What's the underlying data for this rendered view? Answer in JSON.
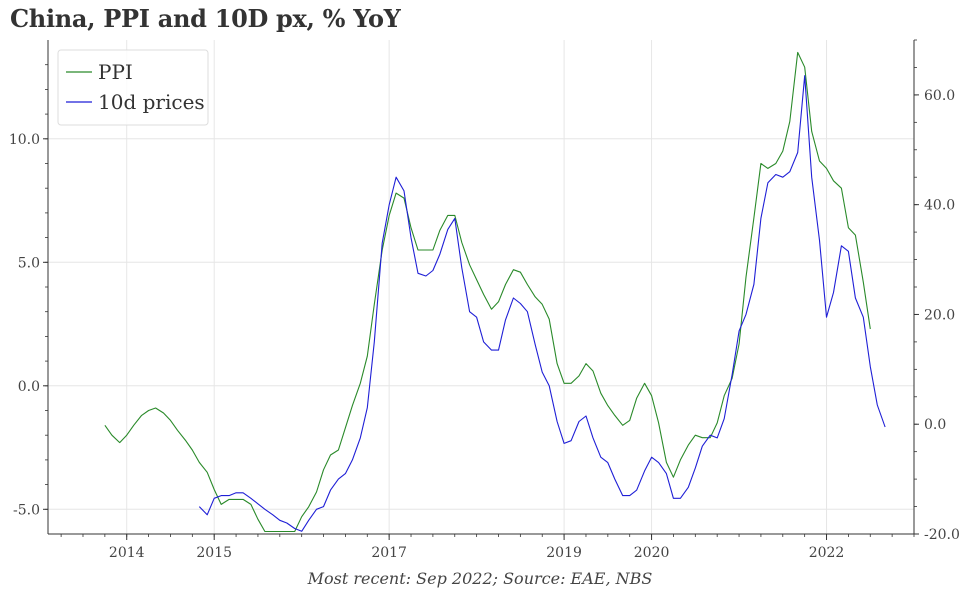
{
  "title": "China, PPI and 10D px, % YoY",
  "footnote": "Most recent: Sep 2022; Source: EAE, NBS",
  "colors": {
    "ppi": "#2a8a2a",
    "tenD": "#1f1fd6",
    "grid": "#e6e6e6",
    "axis": "#333333"
  },
  "chart_data": {
    "type": "line",
    "title": "China, PPI and 10D px, % YoY",
    "x_axis": {
      "min": 2013.1,
      "max": 2023.0,
      "ticks": [
        2014,
        2015,
        2017,
        2019,
        2020,
        2022
      ],
      "tick_labels": [
        "2014",
        "2015",
        "2017",
        "2019",
        "2020",
        "2022"
      ]
    },
    "y_left": {
      "min": -6.0,
      "max": 14.0,
      "ticks": [
        -5,
        0,
        5,
        10
      ],
      "tick_labels": [
        "-5.0",
        "0.0",
        "5.0",
        "10.0"
      ]
    },
    "y_right": {
      "min": -20.0,
      "max": 70.0,
      "ticks": [
        -20,
        0,
        20,
        40,
        60
      ],
      "tick_labels": [
        "-20.0",
        "0.0",
        "20.0",
        "40.0",
        "60.0"
      ]
    },
    "legend": {
      "placement": "top-left",
      "entries": [
        "PPI",
        "10d prices"
      ]
    },
    "grid": true,
    "series": [
      {
        "name": "PPI",
        "axis": "left",
        "color": "#2a8a2a",
        "points": [
          [
            2013.75,
            -1.6
          ],
          [
            2013.83,
            -2.0
          ],
          [
            2013.92,
            -2.3
          ],
          [
            2014.0,
            -2.0
          ],
          [
            2014.08,
            -1.6
          ],
          [
            2014.17,
            -1.2
          ],
          [
            2014.25,
            -1.0
          ],
          [
            2014.33,
            -0.9
          ],
          [
            2014.42,
            -1.1
          ],
          [
            2014.5,
            -1.4
          ],
          [
            2014.58,
            -1.8
          ],
          [
            2014.67,
            -2.2
          ],
          [
            2014.75,
            -2.6
          ],
          [
            2014.83,
            -3.1
          ],
          [
            2014.92,
            -3.5
          ],
          [
            2015.0,
            -4.2
          ],
          [
            2015.08,
            -4.8
          ],
          [
            2015.17,
            -4.6
          ],
          [
            2015.25,
            -4.6
          ],
          [
            2015.33,
            -4.6
          ],
          [
            2015.42,
            -4.8
          ],
          [
            2015.5,
            -5.4
          ],
          [
            2015.58,
            -5.9
          ],
          [
            2015.67,
            -5.9
          ],
          [
            2015.75,
            -5.9
          ],
          [
            2015.83,
            -5.9
          ],
          [
            2015.92,
            -5.9
          ],
          [
            2016.0,
            -5.3
          ],
          [
            2016.08,
            -4.9
          ],
          [
            2016.17,
            -4.3
          ],
          [
            2016.25,
            -3.4
          ],
          [
            2016.33,
            -2.8
          ],
          [
            2016.42,
            -2.6
          ],
          [
            2016.5,
            -1.7
          ],
          [
            2016.58,
            -0.8
          ],
          [
            2016.67,
            0.1
          ],
          [
            2016.75,
            1.2
          ],
          [
            2016.83,
            3.3
          ],
          [
            2016.92,
            5.5
          ],
          [
            2017.0,
            6.9
          ],
          [
            2017.08,
            7.8
          ],
          [
            2017.17,
            7.6
          ],
          [
            2017.25,
            6.4
          ],
          [
            2017.33,
            5.5
          ],
          [
            2017.42,
            5.5
          ],
          [
            2017.5,
            5.5
          ],
          [
            2017.58,
            6.3
          ],
          [
            2017.67,
            6.9
          ],
          [
            2017.75,
            6.9
          ],
          [
            2017.83,
            5.8
          ],
          [
            2017.92,
            4.9
          ],
          [
            2018.0,
            4.3
          ],
          [
            2018.08,
            3.7
          ],
          [
            2018.17,
            3.1
          ],
          [
            2018.25,
            3.4
          ],
          [
            2018.33,
            4.1
          ],
          [
            2018.42,
            4.7
          ],
          [
            2018.5,
            4.6
          ],
          [
            2018.58,
            4.1
          ],
          [
            2018.67,
            3.6
          ],
          [
            2018.75,
            3.3
          ],
          [
            2018.83,
            2.7
          ],
          [
            2018.92,
            0.9
          ],
          [
            2019.0,
            0.1
          ],
          [
            2019.08,
            0.1
          ],
          [
            2019.17,
            0.4
          ],
          [
            2019.25,
            0.9
          ],
          [
            2019.33,
            0.6
          ],
          [
            2019.42,
            -0.3
          ],
          [
            2019.5,
            -0.8
          ],
          [
            2019.58,
            -1.2
          ],
          [
            2019.67,
            -1.6
          ],
          [
            2019.75,
            -1.4
          ],
          [
            2019.83,
            -0.5
          ],
          [
            2019.92,
            0.1
          ],
          [
            2020.0,
            -0.4
          ],
          [
            2020.08,
            -1.5
          ],
          [
            2020.17,
            -3.1
          ],
          [
            2020.25,
            -3.7
          ],
          [
            2020.33,
            -3.0
          ],
          [
            2020.42,
            -2.4
          ],
          [
            2020.5,
            -2.0
          ],
          [
            2020.58,
            -2.1
          ],
          [
            2020.67,
            -2.1
          ],
          [
            2020.75,
            -1.5
          ],
          [
            2020.83,
            -0.4
          ],
          [
            2020.92,
            0.3
          ],
          [
            2021.0,
            1.7
          ],
          [
            2021.08,
            4.4
          ],
          [
            2021.17,
            6.8
          ],
          [
            2021.25,
            9.0
          ],
          [
            2021.33,
            8.8
          ],
          [
            2021.42,
            9.0
          ],
          [
            2021.5,
            9.5
          ],
          [
            2021.58,
            10.7
          ],
          [
            2021.67,
            13.5
          ],
          [
            2021.75,
            12.9
          ],
          [
            2021.83,
            10.3
          ],
          [
            2021.92,
            9.1
          ],
          [
            2022.0,
            8.8
          ],
          [
            2022.08,
            8.3
          ],
          [
            2022.17,
            8.0
          ],
          [
            2022.25,
            6.4
          ],
          [
            2022.33,
            6.1
          ],
          [
            2022.42,
            4.2
          ],
          [
            2022.5,
            2.3
          ]
        ]
      },
      {
        "name": "10d prices",
        "axis": "right",
        "color": "#1f1fd6",
        "points": [
          [
            2014.83,
            -15
          ],
          [
            2014.92,
            -16.5
          ],
          [
            2015.0,
            -13.5
          ],
          [
            2015.08,
            -13.0
          ],
          [
            2015.17,
            -13.0
          ],
          [
            2015.25,
            -12.5
          ],
          [
            2015.33,
            -12.5
          ],
          [
            2015.42,
            -13.5
          ],
          [
            2015.5,
            -14.5
          ],
          [
            2015.58,
            -15.5
          ],
          [
            2015.67,
            -16.5
          ],
          [
            2015.75,
            -17.5
          ],
          [
            2015.83,
            -18.0
          ],
          [
            2015.92,
            -19.0
          ],
          [
            2016.0,
            -19.5
          ],
          [
            2016.08,
            -17.5
          ],
          [
            2016.17,
            -15.5
          ],
          [
            2016.25,
            -15.0
          ],
          [
            2016.33,
            -12.0
          ],
          [
            2016.42,
            -10.0
          ],
          [
            2016.5,
            -9.0
          ],
          [
            2016.58,
            -6.5
          ],
          [
            2016.67,
            -2.5
          ],
          [
            2016.75,
            3.0
          ],
          [
            2016.83,
            15.0
          ],
          [
            2016.92,
            33.0
          ],
          [
            2017.0,
            40.0
          ],
          [
            2017.08,
            45.0
          ],
          [
            2017.17,
            42.5
          ],
          [
            2017.25,
            34.0
          ],
          [
            2017.33,
            27.5
          ],
          [
            2017.42,
            27.0
          ],
          [
            2017.5,
            28.0
          ],
          [
            2017.58,
            31.0
          ],
          [
            2017.67,
            35.5
          ],
          [
            2017.75,
            37.5
          ],
          [
            2017.83,
            28.5
          ],
          [
            2017.92,
            20.5
          ],
          [
            2018.0,
            19.5
          ],
          [
            2018.08,
            15.0
          ],
          [
            2018.17,
            13.5
          ],
          [
            2018.25,
            13.5
          ],
          [
            2018.33,
            19.0
          ],
          [
            2018.42,
            23.0
          ],
          [
            2018.5,
            22.0
          ],
          [
            2018.58,
            20.5
          ],
          [
            2018.67,
            14.5
          ],
          [
            2018.75,
            9.5
          ],
          [
            2018.83,
            7.0
          ],
          [
            2018.92,
            0.5
          ],
          [
            2019.0,
            -3.5
          ],
          [
            2019.08,
            -3.0
          ],
          [
            2019.17,
            0.5
          ],
          [
            2019.25,
            1.5
          ],
          [
            2019.33,
            -2.5
          ],
          [
            2019.42,
            -6.0
          ],
          [
            2019.5,
            -7.0
          ],
          [
            2019.58,
            -10.0
          ],
          [
            2019.67,
            -13.0
          ],
          [
            2019.75,
            -13.0
          ],
          [
            2019.83,
            -12.0
          ],
          [
            2019.92,
            -8.5
          ],
          [
            2020.0,
            -6.0
          ],
          [
            2020.08,
            -7.0
          ],
          [
            2020.17,
            -9.0
          ],
          [
            2020.25,
            -13.5
          ],
          [
            2020.33,
            -13.5
          ],
          [
            2020.42,
            -11.5
          ],
          [
            2020.5,
            -8.0
          ],
          [
            2020.58,
            -4.0
          ],
          [
            2020.67,
            -2.0
          ],
          [
            2020.75,
            -2.5
          ],
          [
            2020.83,
            1.0
          ],
          [
            2020.92,
            9.0
          ],
          [
            2021.0,
            17.0
          ],
          [
            2021.08,
            20.0
          ],
          [
            2021.17,
            25.5
          ],
          [
            2021.25,
            37.5
          ],
          [
            2021.33,
            44.0
          ],
          [
            2021.42,
            45.5
          ],
          [
            2021.5,
            45.0
          ],
          [
            2021.58,
            46.0
          ],
          [
            2021.67,
            49.5
          ],
          [
            2021.75,
            63.5
          ],
          [
            2021.83,
            45.0
          ],
          [
            2021.92,
            33.5
          ],
          [
            2022.0,
            19.5
          ],
          [
            2022.08,
            24.0
          ],
          [
            2022.17,
            32.5
          ],
          [
            2022.25,
            31.5
          ],
          [
            2022.33,
            23.0
          ],
          [
            2022.42,
            19.5
          ],
          [
            2022.5,
            10.5
          ],
          [
            2022.58,
            3.5
          ],
          [
            2022.67,
            -0.5
          ]
        ]
      }
    ]
  }
}
